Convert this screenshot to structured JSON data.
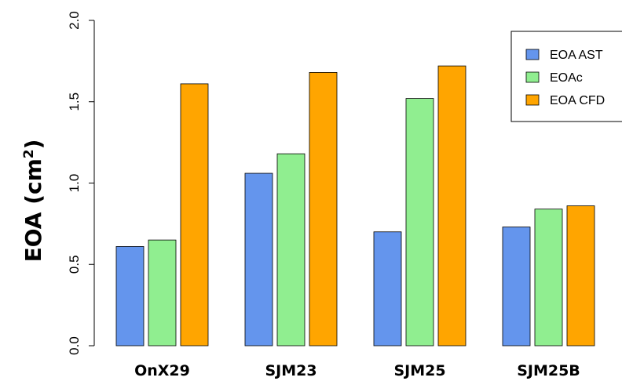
{
  "chart_data": {
    "type": "bar",
    "categories": [
      "OnX29",
      "SJM23",
      "SJM25",
      "SJM25B"
    ],
    "series": [
      {
        "name": "EOA AST",
        "color": "#6495ED",
        "values": [
          0.61,
          1.06,
          0.7,
          0.73
        ]
      },
      {
        "name": "EOAc",
        "color": "#90EE90",
        "values": [
          0.65,
          1.18,
          1.52,
          0.84
        ]
      },
      {
        "name": "EOA CFD",
        "color": "#FFA500",
        "values": [
          1.61,
          1.68,
          1.72,
          0.86
        ]
      }
    ],
    "ylabel": "EOA (cm",
    "ylabel_superscript": "2",
    "ylabel_suffix": ")",
    "xlabel": "",
    "ylim": [
      0,
      2.0
    ],
    "yticks": [
      "0.0",
      "0.5",
      "1.0",
      "1.5",
      "2.0"
    ],
    "grid": false,
    "legend_position": "top-right"
  }
}
